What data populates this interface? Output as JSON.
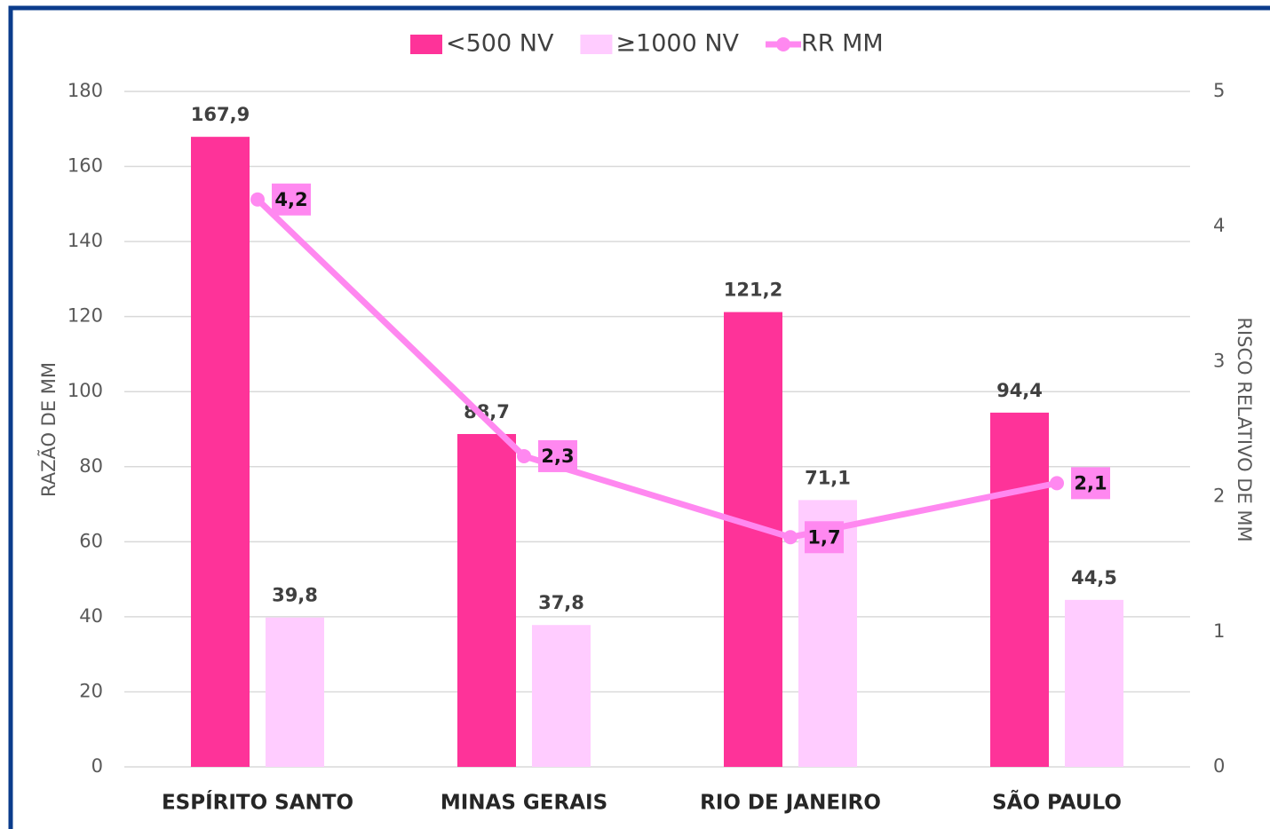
{
  "chart_data": {
    "type": "bar-line",
    "ylabel": "RAZÃO DE MM",
    "y2label": "RISCO RELATIVO DE MM",
    "categories": [
      "ESPÍRITO SANTO",
      "MINAS GERAIS",
      "RIO DE JANEIRO",
      "SÃO PAULO"
    ],
    "series": [
      {
        "name": "<500 NV",
        "color": "#fe3399",
        "type": "bar",
        "values": [
          167.9,
          88.7,
          121.2,
          94.4
        ],
        "value_labels": [
          "167,9",
          "88,7",
          "121,2",
          "94,4"
        ]
      },
      {
        "name": "≥1000 NV",
        "color": "#ffccff",
        "type": "bar",
        "values": [
          39.8,
          37.8,
          71.1,
          44.5
        ],
        "value_labels": [
          "39,8",
          "37,8",
          "71,1",
          "44,5"
        ]
      },
      {
        "name": "RR MM",
        "color": "#ff88f0",
        "type": "line",
        "axis": "y2",
        "values": [
          4.2,
          2.3,
          1.7,
          2.1
        ],
        "value_labels": [
          "4,2",
          "2,3",
          "1,7",
          "2,1"
        ]
      }
    ],
    "ylim": [
      0,
      180
    ],
    "yticks": [
      0,
      20,
      40,
      60,
      80,
      100,
      120,
      140,
      160,
      180
    ],
    "y2lim": [
      0,
      5
    ],
    "y2ticks": [
      0,
      1,
      2,
      3,
      4,
      5
    ],
    "grid": true,
    "legend": "top"
  }
}
